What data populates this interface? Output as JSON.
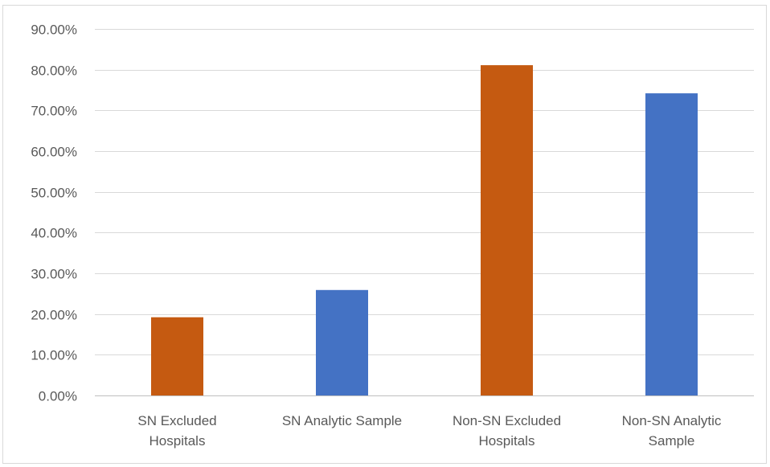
{
  "chart_data": {
    "type": "bar",
    "title": "",
    "xlabel": "",
    "ylabel": "",
    "categories": [
      [
        "SN Excluded",
        "Hospitals"
      ],
      [
        "SN Analytic Sample"
      ],
      [
        "Non-SN Excluded",
        "Hospitals"
      ],
      [
        "Non-SN Analytic",
        "Sample"
      ]
    ],
    "values": [
      0.192,
      0.259,
      0.811,
      0.742
    ],
    "bar_colors": [
      "#c55a11",
      "#4472c4",
      "#c55a11",
      "#4472c4"
    ],
    "ylim": [
      0,
      0.9
    ],
    "yticks": [
      0,
      0.1,
      0.2,
      0.3,
      0.4,
      0.5,
      0.6,
      0.7,
      0.8,
      0.9
    ],
    "ytick_labels": [
      "0.00%",
      "10.00%",
      "20.00%",
      "30.00%",
      "40.00%",
      "50.00%",
      "60.00%",
      "70.00%",
      "80.00%",
      "90.00%"
    ],
    "grid": true,
    "legend": "none",
    "gridline_color": "#d9d9d9",
    "axis_color": "#bfbfbf"
  }
}
